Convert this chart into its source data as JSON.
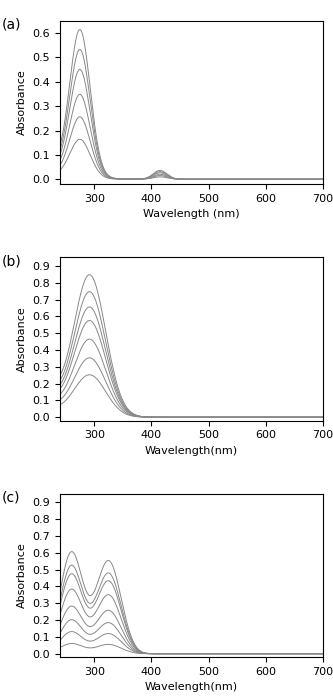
{
  "line_color": "#888888",
  "background_color": "#ffffff",
  "label_fontsize": 10,
  "tick_fontsize": 8,
  "axis_label_fontsize": 8,
  "panel_a": {
    "label": "(a)",
    "ylabel": "Absorbance",
    "xlabel": "Wavelength (nm)",
    "xlim": [
      240,
      700
    ],
    "ylim": [
      -0.02,
      0.65
    ],
    "yticks": [
      0.0,
      0.1,
      0.2,
      0.3,
      0.4,
      0.5,
      0.6
    ],
    "xticks": [
      300,
      400,
      500,
      600,
      700
    ],
    "peak_heights": [
      0.16,
      0.25,
      0.34,
      0.44,
      0.52,
      0.6
    ]
  },
  "panel_b": {
    "label": "(b)",
    "ylabel": "Absorbance",
    "xlabel": "Wavelength(nm)",
    "xlim": [
      240,
      700
    ],
    "ylim": [
      -0.02,
      0.95
    ],
    "yticks": [
      0.0,
      0.1,
      0.2,
      0.3,
      0.4,
      0.5,
      0.6,
      0.7,
      0.8,
      0.9
    ],
    "xticks": [
      300,
      400,
      500,
      600,
      700
    ],
    "peak_heights": [
      0.25,
      0.35,
      0.46,
      0.57,
      0.65,
      0.74,
      0.84
    ]
  },
  "panel_c": {
    "label": "(c)",
    "ylabel": "Absorbance",
    "xlabel": "Wavelength(nm)",
    "xlim": [
      240,
      700
    ],
    "ylim": [
      -0.02,
      0.95
    ],
    "yticks": [
      0.0,
      0.1,
      0.2,
      0.3,
      0.4,
      0.5,
      0.6,
      0.7,
      0.8,
      0.9
    ],
    "xticks": [
      300,
      400,
      500,
      600,
      700
    ],
    "peak_heights": [
      0.06,
      0.13,
      0.2,
      0.28,
      0.38,
      0.47,
      0.52,
      0.6
    ]
  }
}
